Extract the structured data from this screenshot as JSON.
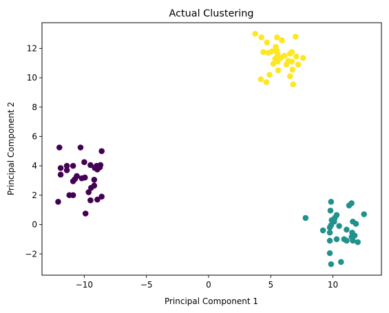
{
  "chart_data": {
    "type": "scatter",
    "title": "Actual Clustering",
    "xlabel": "Principal Component 1",
    "ylabel": "Principal Component 2",
    "xlim": [
      -13.4,
      13.9
    ],
    "ylim": [
      -3.45,
      13.75
    ],
    "xticks": [
      -10,
      -5,
      0,
      5,
      10
    ],
    "xtick_labels": [
      "−10",
      "−5",
      "0",
      "5",
      "10"
    ],
    "yticks": [
      -2,
      0,
      2,
      4,
      6,
      8,
      10,
      12
    ],
    "ytick_labels": [
      "−2",
      "0",
      "2",
      "4",
      "6",
      "8",
      "10",
      "12"
    ],
    "grid": false,
    "legend": "none",
    "series": [
      {
        "color": "#440154",
        "points": [
          [
            -12.0,
            5.25
          ],
          [
            -10.3,
            5.25
          ],
          [
            -8.6,
            5.0
          ],
          [
            -11.9,
            3.85
          ],
          [
            -11.4,
            4.0
          ],
          [
            -10.9,
            4.0
          ],
          [
            -10.0,
            4.25
          ],
          [
            -9.5,
            4.05
          ],
          [
            -9.15,
            3.85
          ],
          [
            -9.0,
            4.0
          ],
          [
            -8.7,
            4.05
          ],
          [
            -8.75,
            3.9
          ],
          [
            -8.95,
            3.75
          ],
          [
            -11.9,
            3.4
          ],
          [
            -11.4,
            3.7
          ],
          [
            -10.6,
            3.3
          ],
          [
            -10.2,
            3.15
          ],
          [
            -9.95,
            3.2
          ],
          [
            -9.2,
            3.05
          ],
          [
            -10.9,
            2.95
          ],
          [
            -10.75,
            3.1
          ],
          [
            -9.45,
            2.5
          ],
          [
            -9.2,
            2.65
          ],
          [
            -9.65,
            2.2
          ],
          [
            -11.2,
            2.0
          ],
          [
            -10.9,
            2.0
          ],
          [
            -8.6,
            1.9
          ],
          [
            -9.5,
            1.65
          ],
          [
            -8.95,
            1.7
          ],
          [
            -12.1,
            1.55
          ],
          [
            -9.9,
            0.75
          ]
        ]
      },
      {
        "color": "#21918c",
        "points": [
          [
            9.85,
            1.55
          ],
          [
            11.5,
            1.45
          ],
          [
            11.3,
            1.3
          ],
          [
            9.8,
            0.95
          ],
          [
            12.5,
            0.7
          ],
          [
            10.3,
            0.65
          ],
          [
            10.15,
            0.45
          ],
          [
            7.8,
            0.45
          ],
          [
            9.9,
            0.3
          ],
          [
            10.1,
            0.2
          ],
          [
            11.6,
            0.2
          ],
          [
            11.85,
            0.05
          ],
          [
            9.85,
            -0.05
          ],
          [
            10.5,
            -0.1
          ],
          [
            9.75,
            -0.2
          ],
          [
            11.1,
            -0.35
          ],
          [
            9.2,
            -0.4
          ],
          [
            9.75,
            -0.55
          ],
          [
            11.55,
            -0.55
          ],
          [
            11.75,
            -0.75
          ],
          [
            11.5,
            -0.85
          ],
          [
            10.3,
            -1.0
          ],
          [
            10.9,
            -1.0
          ],
          [
            11.1,
            -1.1
          ],
          [
            9.75,
            -1.1
          ],
          [
            11.6,
            -1.1
          ],
          [
            12.0,
            -1.2
          ],
          [
            9.75,
            -1.95
          ],
          [
            10.65,
            -2.55
          ],
          [
            9.85,
            -2.7
          ]
        ]
      },
      {
        "color": "#fde725",
        "points": [
          [
            3.75,
            13.0
          ],
          [
            4.25,
            12.75
          ],
          [
            5.5,
            12.75
          ],
          [
            5.9,
            12.55
          ],
          [
            7.0,
            12.8
          ],
          [
            4.7,
            12.4
          ],
          [
            5.4,
            12.1
          ],
          [
            4.4,
            11.75
          ],
          [
            4.8,
            11.7
          ],
          [
            5.1,
            11.8
          ],
          [
            5.5,
            11.85
          ],
          [
            5.55,
            11.6
          ],
          [
            6.1,
            11.5
          ],
          [
            6.55,
            11.65
          ],
          [
            6.7,
            11.75
          ],
          [
            7.05,
            11.45
          ],
          [
            7.6,
            11.35
          ],
          [
            5.35,
            11.3
          ],
          [
            5.8,
            11.35
          ],
          [
            6.4,
            11.15
          ],
          [
            6.7,
            11.1
          ],
          [
            5.2,
            10.95
          ],
          [
            5.55,
            11.1
          ],
          [
            6.25,
            10.9
          ],
          [
            7.2,
            10.9
          ],
          [
            5.6,
            10.5
          ],
          [
            6.75,
            10.55
          ],
          [
            4.9,
            10.2
          ],
          [
            6.55,
            10.1
          ],
          [
            4.2,
            9.9
          ],
          [
            4.65,
            9.7
          ],
          [
            6.8,
            9.55
          ]
        ]
      }
    ]
  }
}
